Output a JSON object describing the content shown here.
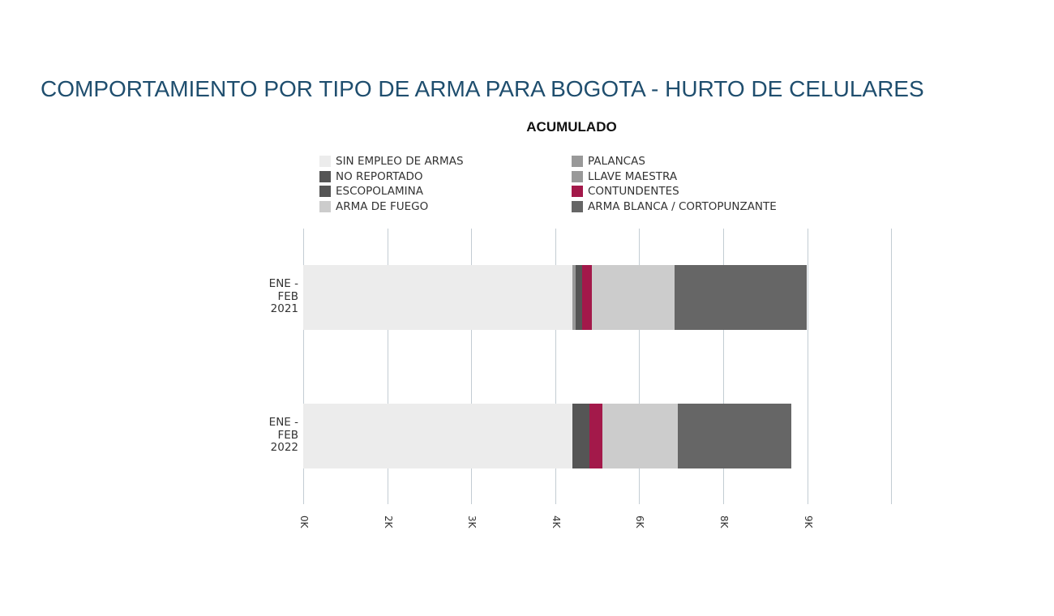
{
  "title": "COMPORTAMIENTO POR TIPO DE ARMA PARA BOGOTA - HURTO DE CELULARES",
  "subtitle": "ACUMULADO",
  "legend": {
    "left": [
      {
        "label": "SIN EMPLEO DE ARMAS",
        "color": "#ececec"
      },
      {
        "label": "NO REPORTADO",
        "color": "#555555"
      },
      {
        "label": "ESCOPOLAMINA",
        "color": "#555555"
      },
      {
        "label": "ARMA DE FUEGO",
        "color": "#cccccc"
      }
    ],
    "right": [
      {
        "label": "PALANCAS",
        "color": "#999999"
      },
      {
        "label": "LLAVE MAESTRA",
        "color": "#999999"
      },
      {
        "label": "CONTUNDENTES",
        "color": "#a3194a"
      },
      {
        "label": "ARMA BLANCA / CORTOPUNZANTE",
        "color": "#666666"
      }
    ]
  },
  "y_labels": [
    [
      "ENE -",
      "FEB",
      "2021"
    ],
    [
      "ENE -",
      "FEB",
      "2022"
    ]
  ],
  "x_ticks": [
    "0K",
    "2K",
    "3K",
    "4K",
    "6K",
    "8K",
    "9K"
  ],
  "chart_data": {
    "type": "bar",
    "orientation": "horizontal",
    "stacked": true,
    "title": "COMPORTAMIENTO POR TIPO DE ARMA PARA BOGOTA - HURTO DE CELULARES",
    "subtitle": "ACUMULADO",
    "xlabel": "",
    "ylabel": "",
    "categories": [
      "ENE - FEB 2021",
      "ENE - FEB 2022"
    ],
    "x_tick_labels": [
      "0K",
      "2K",
      "3K",
      "4K",
      "6K",
      "8K",
      "9K"
    ],
    "xlim": [
      0,
      10500
    ],
    "grid": true,
    "legend_position": "top",
    "series": [
      {
        "name": "SIN EMPLEO DE ARMAS",
        "color": "#ececec",
        "values": [
          4810,
          4810
        ]
      },
      {
        "name": "PALANCAS",
        "color": "#999999",
        "values": [
          30,
          0
        ]
      },
      {
        "name": "LLAVE MAESTRA",
        "color": "#999999",
        "values": [
          30,
          0
        ]
      },
      {
        "name": "NO REPORTADO",
        "color": "#555555",
        "values": [
          60,
          305
        ]
      },
      {
        "name": "ESCOPOLAMINA",
        "color": "#555555",
        "values": [
          55,
          0
        ]
      },
      {
        "name": "CONTUNDENTES",
        "color": "#a3194a",
        "values": [
          175,
          230
        ]
      },
      {
        "name": "ARMA DE FUEGO",
        "color": "#cccccc",
        "values": [
          1475,
          1345
        ]
      },
      {
        "name": "ARMA BLANCA / CORTOPUNZANTE",
        "color": "#666666",
        "values": [
          2360,
          2030
        ]
      }
    ]
  }
}
